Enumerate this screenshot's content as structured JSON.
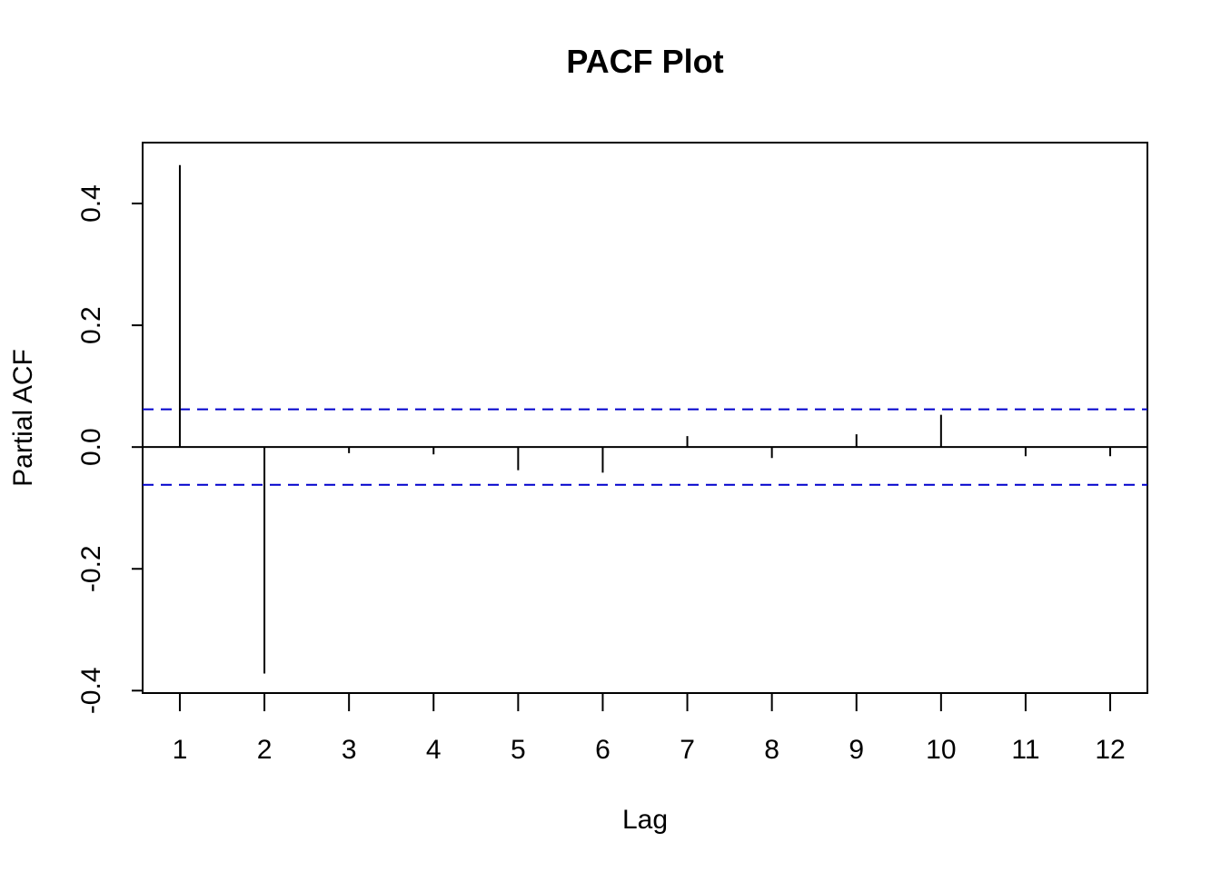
{
  "chart_data": {
    "type": "bar",
    "title": "PACF Plot",
    "xlabel": "Lag",
    "ylabel": "Partial ACF",
    "x": [
      1,
      2,
      3,
      4,
      5,
      6,
      7,
      8,
      9,
      10,
      11,
      12
    ],
    "x_tick_labels": [
      "1",
      "2",
      "3",
      "4",
      "5",
      "6",
      "7",
      "8",
      "9",
      "10",
      "11",
      "12"
    ],
    "values": [
      0.463,
      -0.372,
      -0.01,
      -0.012,
      -0.038,
      -0.042,
      0.018,
      -0.018,
      0.021,
      0.053,
      -0.015,
      -0.015
    ],
    "y_ticks": [
      -0.4,
      -0.2,
      0.0,
      0.2,
      0.4
    ],
    "y_tick_labels": [
      "-0.4",
      "-0.2",
      "0.0",
      "0.2",
      "0.4"
    ],
    "xlim": [
      0.56,
      12.44
    ],
    "ylim": [
      -0.404,
      0.5
    ],
    "confidence_bounds": [
      0.062,
      -0.062
    ],
    "confidence_color": "#0000cc",
    "bar_color": "#000000",
    "grid": false,
    "legend": "none"
  }
}
